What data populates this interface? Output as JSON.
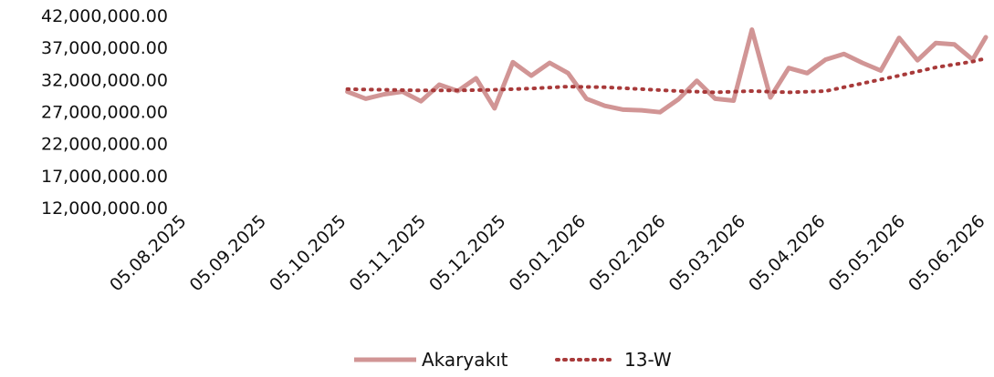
{
  "chart_data": {
    "type": "line",
    "title": "",
    "xlabel": "",
    "ylabel": "",
    "ylim": [
      12000000,
      42000000
    ],
    "y_ticks": [
      "12,000,000.00",
      "17,000,000.00",
      "22,000,000.00",
      "27,000,000.00",
      "32,000,000.00",
      "37,000,000.00",
      "42,000,000.00"
    ],
    "x_ticks": [
      "05.08.2025",
      "05.09.2025",
      "05.10.2025",
      "05.11.2025",
      "05.12.2025",
      "05.01.2026",
      "05.02.2026",
      "05.03.2026",
      "05.04.2026",
      "05.05.2026",
      "05.06.2026"
    ],
    "xlim": [
      "2025-08-05",
      "2026-06-05"
    ],
    "grid": false,
    "legend_position": "bottom",
    "series": [
      {
        "name": "Akaryakıt",
        "style": "solid",
        "color": "#d19595",
        "x": [
          "2025-10-05",
          "2025-10-12",
          "2025-10-19",
          "2025-10-26",
          "2025-11-02",
          "2025-11-09",
          "2025-11-16",
          "2025-11-23",
          "2025-11-30",
          "2025-12-07",
          "2025-12-14",
          "2025-12-21",
          "2025-12-28",
          "2026-01-04",
          "2026-01-11",
          "2026-01-18",
          "2026-01-25",
          "2026-02-01",
          "2026-02-08",
          "2026-02-15",
          "2026-02-22",
          "2026-03-01",
          "2026-03-08",
          "2026-03-15",
          "2026-03-22",
          "2026-03-29",
          "2026-04-05",
          "2026-04-12",
          "2026-04-19",
          "2026-04-26",
          "2026-05-03",
          "2026-05-10",
          "2026-05-17",
          "2026-05-24",
          "2026-05-31",
          "2026-06-05"
        ],
        "values": [
          30100000,
          29000000,
          29700000,
          30100000,
          28600000,
          31200000,
          30200000,
          32200000,
          27500000,
          34700000,
          32600000,
          34600000,
          33000000,
          29000000,
          27900000,
          27300000,
          27200000,
          26900000,
          28900000,
          31800000,
          29000000,
          28700000,
          39800000,
          29200000,
          33800000,
          33000000,
          35100000,
          36000000,
          34600000,
          33400000,
          38500000,
          35000000,
          37700000,
          37500000,
          35100000,
          38600000
        ]
      },
      {
        "name": "13-W",
        "style": "dotted",
        "color": "#a83a3a",
        "x": [
          "2025-10-05",
          "2025-10-19",
          "2025-11-02",
          "2025-11-16",
          "2025-11-30",
          "2025-12-14",
          "2025-12-28",
          "2026-01-11",
          "2026-01-25",
          "2026-02-08",
          "2026-02-22",
          "2026-03-08",
          "2026-03-22",
          "2026-04-05",
          "2026-04-19",
          "2026-05-03",
          "2026-05-17",
          "2026-05-31",
          "2026-06-05"
        ],
        "values": [
          30500000,
          30400000,
          30300000,
          30300000,
          30400000,
          30600000,
          30900000,
          30800000,
          30500000,
          30200000,
          30000000,
          30200000,
          30000000,
          30200000,
          31400000,
          32600000,
          33900000,
          34800000,
          35300000
        ]
      }
    ]
  }
}
